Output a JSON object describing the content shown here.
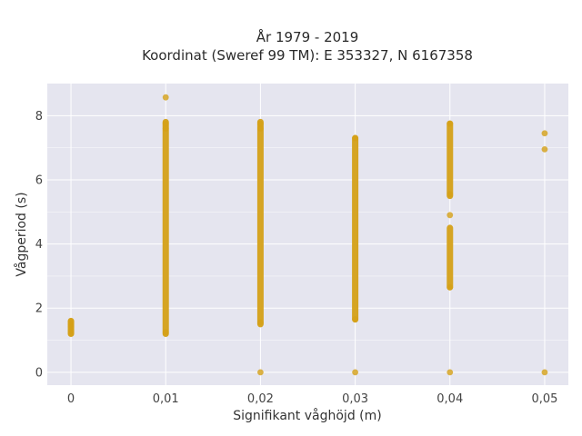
{
  "chart_data": {
    "type": "scatter",
    "title": "År 1979 - 2019",
    "subtitle": "Koordinat (Sweref 99 TM): E 353327, N 6167358",
    "xlabel": "Signifikant våghöjd (m)",
    "ylabel": "Vågperiod (s)",
    "xlim": [
      -0.0025,
      0.0525
    ],
    "ylim": [
      -0.4,
      9.0
    ],
    "x_ticks": [
      0,
      0.01,
      0.02,
      0.03,
      0.04,
      0.05
    ],
    "x_tick_labels": [
      "0",
      "0,01",
      "0,02",
      "0,03",
      "0,04",
      "0,05"
    ],
    "y_ticks": [
      0,
      2,
      4,
      6,
      8
    ],
    "y_tick_labels": [
      "0",
      "2",
      "4",
      "6",
      "8"
    ],
    "grid": true,
    "marker_color": "#d4a017",
    "background_color": "#e5e5ef",
    "grid_color": "#ffffff",
    "series": [
      {
        "columns": [
          {
            "x": 0.0,
            "segments": [
              [
                1.2,
                1.6
              ]
            ],
            "points": [
              1.22,
              1.3,
              1.42,
              1.5,
              1.58
            ]
          },
          {
            "x": 0.01,
            "segments": [
              [
                1.2,
                7.8
              ]
            ],
            "points": [
              8.57,
              7.75,
              7.6,
              1.25
            ]
          },
          {
            "x": 0.02,
            "segments": [
              [
                1.5,
                7.8
              ]
            ],
            "points": [
              0.0,
              7.75,
              7.6,
              1.55
            ]
          },
          {
            "x": 0.03,
            "segments": [
              [
                1.65,
                7.3
              ]
            ],
            "points": [
              0.0,
              7.3,
              1.65
            ]
          },
          {
            "x": 0.04,
            "segments": [
              [
                5.5,
                7.75
              ],
              [
                2.65,
                4.5
              ]
            ],
            "points": [
              0.0,
              4.9,
              2.65,
              7.75,
              5.55
            ]
          },
          {
            "x": 0.05,
            "segments": [],
            "points": [
              0.0,
              6.95,
              7.45
            ]
          }
        ]
      }
    ]
  }
}
